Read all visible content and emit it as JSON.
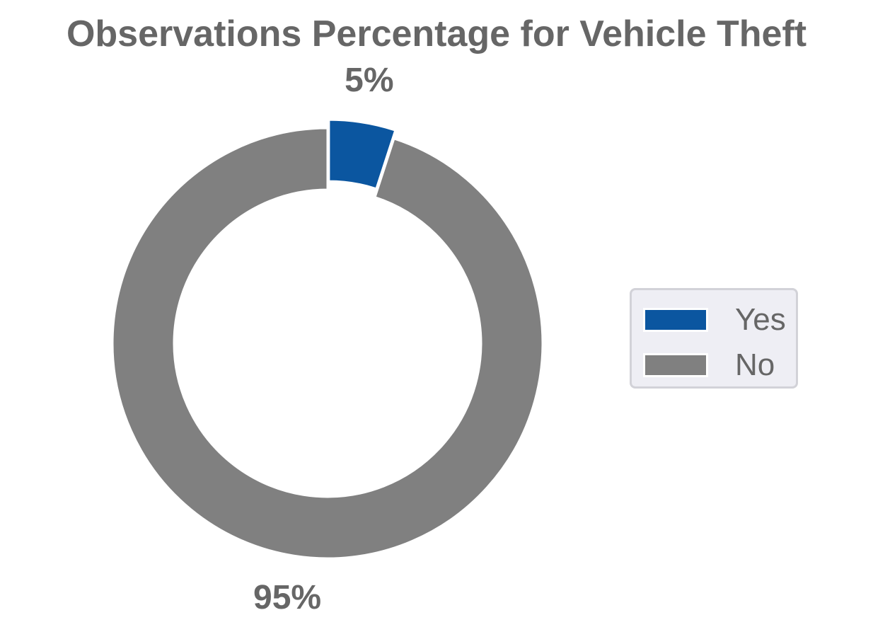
{
  "chart_data": {
    "type": "pie",
    "style": "donut",
    "title": "Observations Percentage for Vehicle Theft",
    "slices": [
      {
        "label": "Yes",
        "value": 5,
        "display": "5%",
        "color": "#0b56a0",
        "exploded": true
      },
      {
        "label": "No",
        "value": 95,
        "display": "95%",
        "color": "#808080",
        "exploded": false
      }
    ],
    "legend": {
      "placement": "right",
      "entries": [
        "Yes",
        "No"
      ]
    }
  }
}
